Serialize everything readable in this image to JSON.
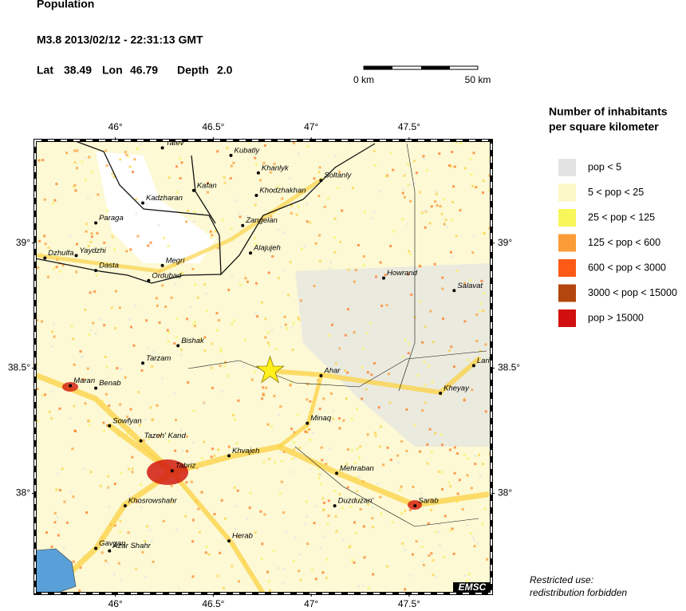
{
  "header": {
    "title": "Population",
    "event": "M3.8  2013/02/12 - 22:31:13 GMT",
    "lat_label": "Lat",
    "lat": 38.49,
    "lon_label": "Lon",
    "lon": 46.79,
    "depth_label": "Depth",
    "depth": "2.0"
  },
  "scale_bar": {
    "start": "0 km",
    "end": "50 km"
  },
  "map": {
    "xlim": [
      45.59,
      47.92
    ],
    "ylim": [
      37.6,
      39.41
    ],
    "xticks": [
      {
        "value": 46,
        "label": "46°"
      },
      {
        "value": 46.5,
        "label": "46.5°"
      },
      {
        "value": 47,
        "label": "47°"
      },
      {
        "value": 47.5,
        "label": "47.5°"
      }
    ],
    "yticks": [
      {
        "value": 38,
        "label": "38°"
      },
      {
        "value": 38.5,
        "label": "38.5°"
      },
      {
        "value": 39,
        "label": "39°"
      }
    ],
    "cities": [
      {
        "name": "Tatev",
        "lon": 46.24,
        "lat": 39.38
      },
      {
        "name": "Kubatly",
        "lon": 46.59,
        "lat": 39.35
      },
      {
        "name": "Khanlyk",
        "lon": 46.73,
        "lat": 39.28
      },
      {
        "name": "Soltanly",
        "lon": 47.05,
        "lat": 39.25
      },
      {
        "name": "Kafan",
        "lon": 46.4,
        "lat": 39.21
      },
      {
        "name": "Khodzhakhan",
        "lon": 46.72,
        "lat": 39.19
      },
      {
        "name": "Kadzharan",
        "lon": 46.14,
        "lat": 39.16
      },
      {
        "name": "Zangelan",
        "lon": 46.65,
        "lat": 39.07
      },
      {
        "name": "Paraga",
        "lon": 45.9,
        "lat": 39.08
      },
      {
        "name": "Alajujeh",
        "lon": 46.69,
        "lat": 38.96
      },
      {
        "name": "Dzhulfa",
        "lon": 45.64,
        "lat": 38.94
      },
      {
        "name": "Yaydzhi",
        "lon": 45.8,
        "lat": 38.95
      },
      {
        "name": "Dasta",
        "lon": 45.9,
        "lat": 38.89
      },
      {
        "name": "Ordubad",
        "lon": 46.17,
        "lat": 38.85
      },
      {
        "name": "Megri",
        "lon": 46.24,
        "lat": 38.91
      },
      {
        "name": "Howrand",
        "lon": 47.37,
        "lat": 38.86
      },
      {
        "name": "Salavat",
        "lon": 47.73,
        "lat": 38.81
      },
      {
        "name": "Bishak",
        "lon": 46.32,
        "lat": 38.59
      },
      {
        "name": "Tarzam",
        "lon": 46.14,
        "lat": 38.52
      },
      {
        "name": "Ahar",
        "lon": 47.05,
        "lat": 38.47
      },
      {
        "name": "Lari",
        "lon": 47.83,
        "lat": 38.51
      },
      {
        "name": "Maran",
        "lon": 45.77,
        "lat": 38.43
      },
      {
        "name": "Benab",
        "lon": 45.9,
        "lat": 38.42
      },
      {
        "name": "Kheyay",
        "lon": 47.66,
        "lat": 38.4
      },
      {
        "name": "Sowfyan",
        "lon": 45.97,
        "lat": 38.27
      },
      {
        "name": "Minaq",
        "lon": 46.98,
        "lat": 38.28
      },
      {
        "name": "Tazeh' Kand",
        "lon": 46.13,
        "lat": 38.21
      },
      {
        "name": "Khvajeh",
        "lon": 46.58,
        "lat": 38.15
      },
      {
        "name": "Tabriz",
        "lon": 46.29,
        "lat": 38.09
      },
      {
        "name": "Mehraban",
        "lon": 47.13,
        "lat": 38.08
      },
      {
        "name": "Khosrowshahr",
        "lon": 46.05,
        "lat": 37.95
      },
      {
        "name": "Duzduzan'",
        "lon": 47.12,
        "lat": 37.95
      },
      {
        "name": "Sarab",
        "lon": 47.53,
        "lat": 37.95
      },
      {
        "name": "Herab",
        "lon": 46.58,
        "lat": 37.81
      },
      {
        "name": "Gavgan",
        "lon": 45.9,
        "lat": 37.78
      },
      {
        "name": "Azar Shahr",
        "lon": 45.97,
        "lat": 37.77
      }
    ],
    "attribution": "EMSC"
  },
  "legend": {
    "title": [
      "Number of inhabitants",
      "per square kilometer"
    ],
    "items": [
      {
        "label": "pop < 5",
        "color": "#e3e3e3"
      },
      {
        "label": "5 < pop < 25",
        "color": "#fbf8c6"
      },
      {
        "label": "25 < pop < 125",
        "color": "#f9f65a"
      },
      {
        "label": "125 < pop < 600",
        "color": "#fb9c38"
      },
      {
        "label": "600 < pop < 3000",
        "color": "#fd5a15"
      },
      {
        "label": "3000 < pop < 15000",
        "color": "#b3460e"
      },
      {
        "label": "pop > 15000",
        "color": "#d20f0f"
      }
    ]
  },
  "note": [
    "Restricted use:",
    "redistribution forbidden"
  ]
}
